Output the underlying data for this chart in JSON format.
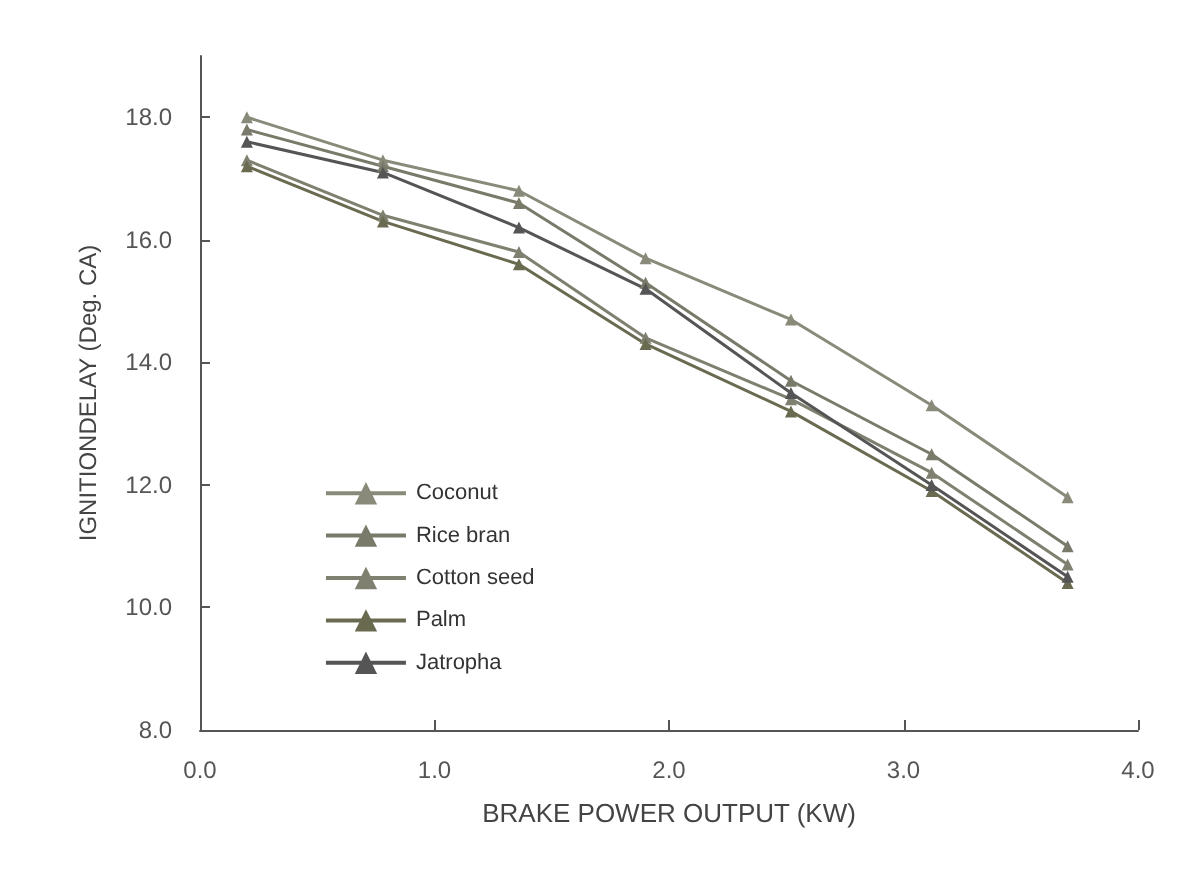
{
  "chart_data": {
    "type": "line",
    "xlabel": "BRAKE POWER OUTPUT (KW)",
    "ylabel": "IGNITIONDELAY (Deg. CA)",
    "xlim": [
      0,
      4
    ],
    "xticks": [
      {
        "value": 0,
        "label": "0.0"
      },
      {
        "value": 1,
        "label": "1.0"
      },
      {
        "value": 2,
        "label": "2.0"
      },
      {
        "value": 3,
        "label": "3.0"
      },
      {
        "value": 4,
        "label": "4.0"
      }
    ],
    "ylim": [
      8,
      19
    ],
    "yticks": [
      {
        "value": 8,
        "label": "8.0"
      },
      {
        "value": 10,
        "label": "10.0"
      },
      {
        "value": 12,
        "label": "12.0"
      },
      {
        "value": 14,
        "label": "14.0"
      },
      {
        "value": 16,
        "label": "16.0"
      },
      {
        "value": 18,
        "label": "18.0"
      }
    ],
    "x": [
      0.2,
      0.78,
      1.36,
      1.9,
      2.52,
      3.12,
      3.7
    ],
    "grid": false,
    "legend": "bottom left",
    "marker": "triangle",
    "line_style": "solid",
    "series": [
      {
        "name": "Coconut",
        "color": "#8a8a7a",
        "values": [
          18.0,
          17.3,
          16.8,
          15.7,
          14.7,
          13.3,
          11.8
        ]
      },
      {
        "name": "Rice bran",
        "color": "#7a7a6a",
        "values": [
          17.8,
          17.2,
          16.6,
          15.3,
          13.7,
          12.5,
          11.0
        ]
      },
      {
        "name": "Cotton seed",
        "color": "#808070",
        "values": [
          17.3,
          16.4,
          15.8,
          14.4,
          13.4,
          12.2,
          10.7
        ]
      },
      {
        "name": "Palm",
        "color": "#6a6a50",
        "values": [
          17.2,
          16.3,
          15.6,
          14.3,
          13.2,
          11.9,
          10.4
        ]
      },
      {
        "name": "Jatropha",
        "color": "#555555",
        "values": [
          17.6,
          17.1,
          16.2,
          15.2,
          13.5,
          12.0,
          10.5
        ]
      }
    ]
  }
}
